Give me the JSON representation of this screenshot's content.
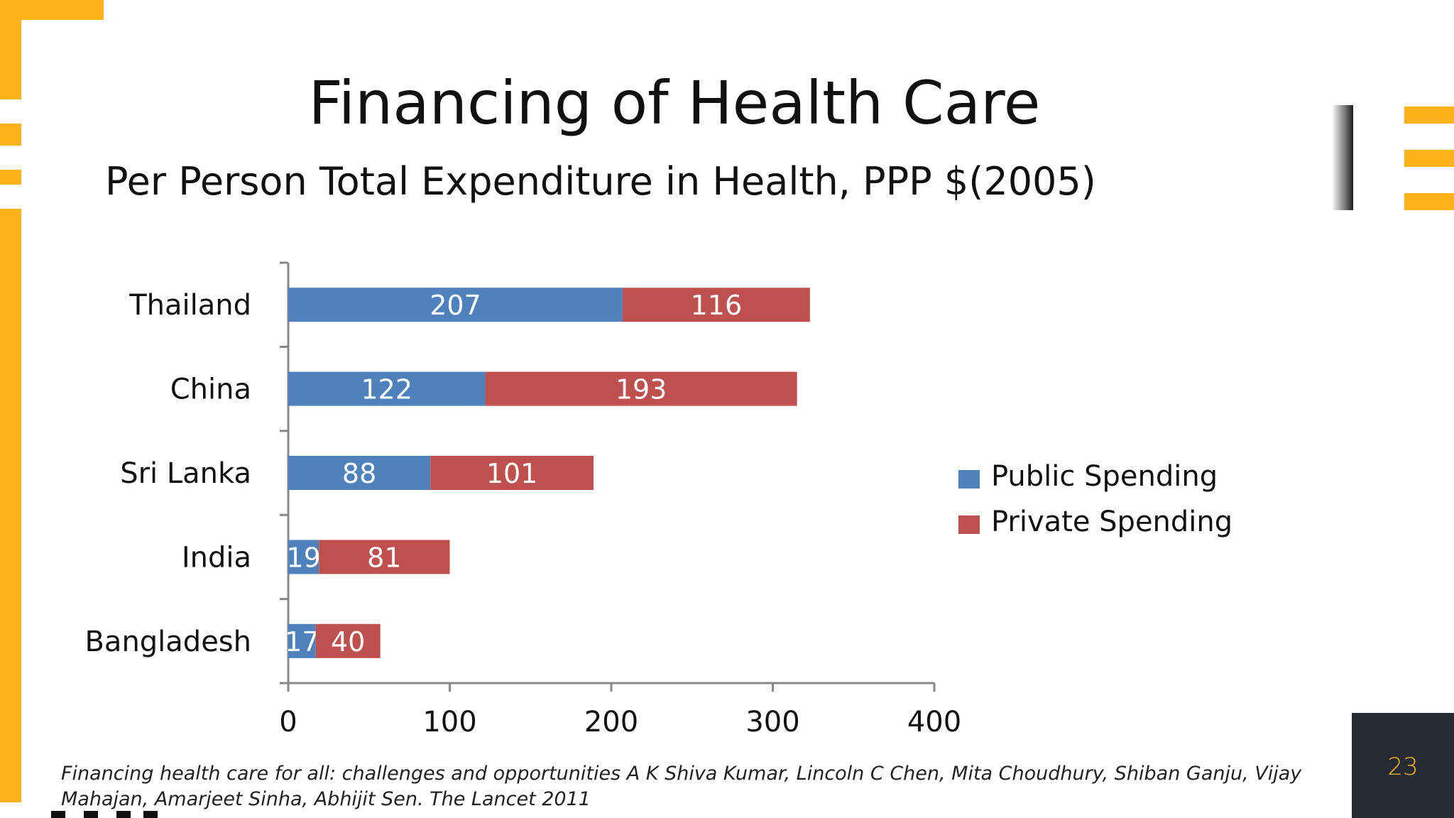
{
  "slide": {
    "title": "Financing of Health Care",
    "subtitle": "Per Person Total Expenditure in Health, PPP $(2005)",
    "citation": "Financing health care for all: challenges and opportunities A K Shiva Kumar, Lincoln C Chen, Mita Choudhury, Shiban Ganju, Vijay Mahajan, Amarjeet Sinha, Abhijit Sen. The Lancet 2011",
    "page_number": "23",
    "accent_color": "#fcb21a",
    "icons": [
      "menu-icon"
    ]
  },
  "chart_data": {
    "type": "bar",
    "orientation": "horizontal",
    "stacked": true,
    "title": "Per Person Total Expenditure in Health, PPP $(2005)",
    "categories": [
      "Thailand",
      "China",
      "Sri Lanka",
      "India",
      "Bangladesh"
    ],
    "series": [
      {
        "name": "Public Spending",
        "color": "#4f81bd",
        "values": [
          207,
          122,
          88,
          19,
          17
        ]
      },
      {
        "name": "Private Spending",
        "color": "#c0504d",
        "values": [
          116,
          193,
          101,
          81,
          40
        ]
      }
    ],
    "xlim": [
      0,
      400
    ],
    "xticks": [
      0,
      100,
      200,
      300,
      400
    ],
    "data_labels": true,
    "grid": false,
    "legend_position": "right"
  }
}
